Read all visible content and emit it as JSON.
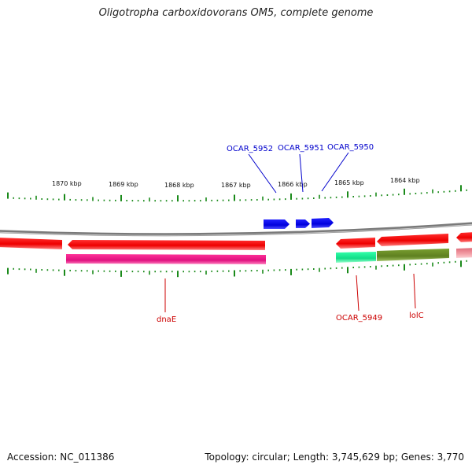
{
  "title": "Oligotropha carboxidovorans OM5, complete genome",
  "footer": {
    "accession": "Accession: NC_011386",
    "summary": "Topology: circular; Length: 3,745,629 bp; Genes: 3,770"
  },
  "ruler": {
    "tick_labels": [
      "1870 kbp",
      "1869 kbp",
      "1868 kbp",
      "1867 kbp",
      "1866 kbp",
      "1865 kbp",
      "1864 kbp"
    ]
  },
  "genes": [
    {
      "label": "OCAR_5952",
      "strand": "forward",
      "color": "#0000ee"
    },
    {
      "label": "OCAR_5951",
      "strand": "forward",
      "color": "#0000ee"
    },
    {
      "label": "OCAR_5950",
      "strand": "forward",
      "color": "#0000ee"
    },
    {
      "label": "dnaE",
      "strand": "reverse",
      "color": "#ff0000"
    },
    {
      "label": "OCAR_5949",
      "strand": "reverse",
      "color": "#ff0000"
    },
    {
      "label": "lolC",
      "strand": "reverse",
      "color": "#ff0000"
    }
  ],
  "colors": {
    "forward_label": "#0000cc",
    "reverse_label": "#cc0000",
    "cds_forward": "#0000ee",
    "cds_reverse": "#ff0000",
    "tick": "#1a8a1a",
    "backbone": "#808080",
    "cog_magenta": "#ee1493",
    "cog_green": "#33dd99",
    "cog_olive": "#6b8e23",
    "cog_pink": "#f4a0a8"
  }
}
